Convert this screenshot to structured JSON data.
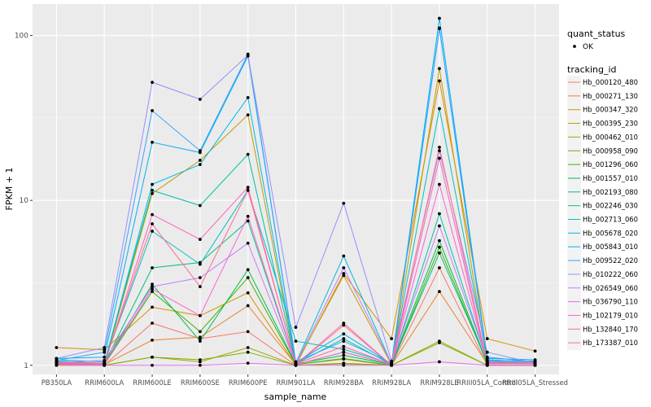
{
  "chart_data": {
    "type": "line",
    "title": "",
    "xlabel": "sample_name",
    "ylabel": "FPKM + 1",
    "y_scale": "log10",
    "ylim": [
      0.88,
      155
    ],
    "y_ticks": [
      1,
      10,
      100
    ],
    "y_tick_labels": [
      "1",
      "10",
      "100"
    ],
    "grid": true,
    "legend_position": "right",
    "categories": [
      "PB350LA",
      "RRIM600LA",
      "RRIM600LE",
      "RRIM600SE",
      "RRIM600PE",
      "RRIM901LA",
      "RRIM928BA",
      "RRIM928LA",
      "RRIM928LE",
      "RRIII05LA_Control",
      "RRIII05LA_Stressed"
    ],
    "quant_status_legend": {
      "title": "quant_status",
      "entries": [
        "OK"
      ]
    },
    "series_legend_title": "tracking_id",
    "series": [
      {
        "name": "Hb_000120_480",
        "color": "#F8766D",
        "values": [
          1.02,
          1.0,
          1.8,
          1.45,
          1.6,
          1.0,
          1.75,
          1.0,
          3.9,
          1.0,
          1.0
        ]
      },
      {
        "name": "Hb_000271_130",
        "color": "#EA8331",
        "values": [
          1.03,
          1.01,
          1.42,
          1.48,
          2.3,
          1.01,
          1.09,
          1.0,
          2.8,
          1.02,
          1.02
        ]
      },
      {
        "name": "Hb_000347_320",
        "color": "#D89000",
        "values": [
          1.28,
          1.24,
          2.25,
          2.0,
          2.75,
          1.0,
          3.6,
          1.45,
          53.0,
          1.45,
          1.22
        ]
      },
      {
        "name": "Hb_000395_230",
        "color": "#C09B00",
        "values": [
          1.02,
          1.0,
          11.0,
          17.5,
          33.0,
          1.01,
          3.5,
          1.01,
          63.0,
          1.03,
          1.03
        ]
      },
      {
        "name": "Hb_000462_010",
        "color": "#A3A500",
        "values": [
          1.01,
          1.0,
          1.12,
          1.05,
          1.28,
          1.0,
          1.03,
          1.0,
          1.4,
          1.0,
          1.0
        ]
      },
      {
        "name": "Hb_000958_090",
        "color": "#7CAE00",
        "values": [
          1.0,
          1.0,
          1.12,
          1.08,
          1.2,
          1.0,
          1.02,
          1.0,
          1.37,
          1.0,
          1.0
        ]
      },
      {
        "name": "Hb_001296_060",
        "color": "#39B600",
        "values": [
          1.04,
          1.01,
          2.8,
          1.6,
          3.4,
          1.01,
          1.1,
          1.0,
          5.2,
          1.02,
          1.02
        ]
      },
      {
        "name": "Hb_001557_010",
        "color": "#00BB4E",
        "values": [
          1.03,
          1.02,
          3.1,
          1.4,
          3.8,
          1.02,
          1.15,
          1.01,
          5.7,
          1.03,
          1.02
        ]
      },
      {
        "name": "Hb_002193_080",
        "color": "#00BF7D",
        "values": [
          1.05,
          1.02,
          3.9,
          4.2,
          7.5,
          1.01,
          1.2,
          1.01,
          4.8,
          1.04,
          1.03
        ]
      },
      {
        "name": "Hb_002246_030",
        "color": "#00C1A3",
        "values": [
          1.06,
          1.03,
          11.5,
          9.3,
          19.0,
          1.02,
          1.45,
          1.01,
          8.3,
          1.05,
          1.04
        ]
      },
      {
        "name": "Hb_002713_060",
        "color": "#00BFC4",
        "values": [
          1.08,
          1.05,
          6.5,
          4.1,
          11.5,
          1.4,
          1.25,
          1.02,
          36.0,
          1.08,
          1.05
        ]
      },
      {
        "name": "Hb_005678_020",
        "color": "#00BAE0",
        "values": [
          1.05,
          1.02,
          12.5,
          16.5,
          42.0,
          1.03,
          4.6,
          1.02,
          111.0,
          1.07,
          1.06
        ]
      },
      {
        "name": "Hb_005843_010",
        "color": "#00B0F6",
        "values": [
          1.1,
          1.12,
          22.5,
          19.5,
          75.0,
          1.04,
          1.55,
          1.02,
          127.0,
          1.1,
          1.08
        ]
      },
      {
        "name": "Hb_009522_020",
        "color": "#35A2FF",
        "values": [
          1.07,
          1.2,
          35.0,
          20.0,
          77.0,
          1.05,
          1.4,
          1.03,
          110.0,
          1.12,
          1.05
        ]
      },
      {
        "name": "Hb_010222_060",
        "color": "#9590FF",
        "values": [
          1.1,
          1.28,
          52.0,
          41.0,
          76.0,
          1.7,
          9.6,
          1.06,
          20.0,
          1.2,
          1.03
        ]
      },
      {
        "name": "Hb_026549_060",
        "color": "#C77CFF",
        "values": [
          1.04,
          1.07,
          3.0,
          3.4,
          5.5,
          1.02,
          3.9,
          1.02,
          7.0,
          1.06,
          1.04
        ]
      },
      {
        "name": "Hb_036790_110",
        "color": "#E76BF3",
        "values": [
          1.0,
          1.0,
          1.0,
          1.0,
          1.03,
          1.0,
          1.0,
          1.0,
          1.05,
          1.0,
          1.0
        ]
      },
      {
        "name": "Hb_102179_010",
        "color": "#FA62DB",
        "values": [
          1.03,
          1.02,
          2.9,
          2.0,
          8.0,
          1.01,
          1.2,
          1.01,
          12.5,
          1.04,
          1.02
        ]
      },
      {
        "name": "Hb_132840_170",
        "color": "#FF62BC",
        "values": [
          1.02,
          1.01,
          8.2,
          5.8,
          12.0,
          1.01,
          1.8,
          1.0,
          18.0,
          1.02,
          1.02
        ]
      },
      {
        "name": "Hb_173387_010",
        "color": "#FF6C91",
        "values": [
          1.04,
          1.03,
          7.2,
          3.0,
          11.5,
          1.02,
          1.3,
          1.01,
          21.0,
          1.03,
          1.03
        ]
      }
    ]
  }
}
